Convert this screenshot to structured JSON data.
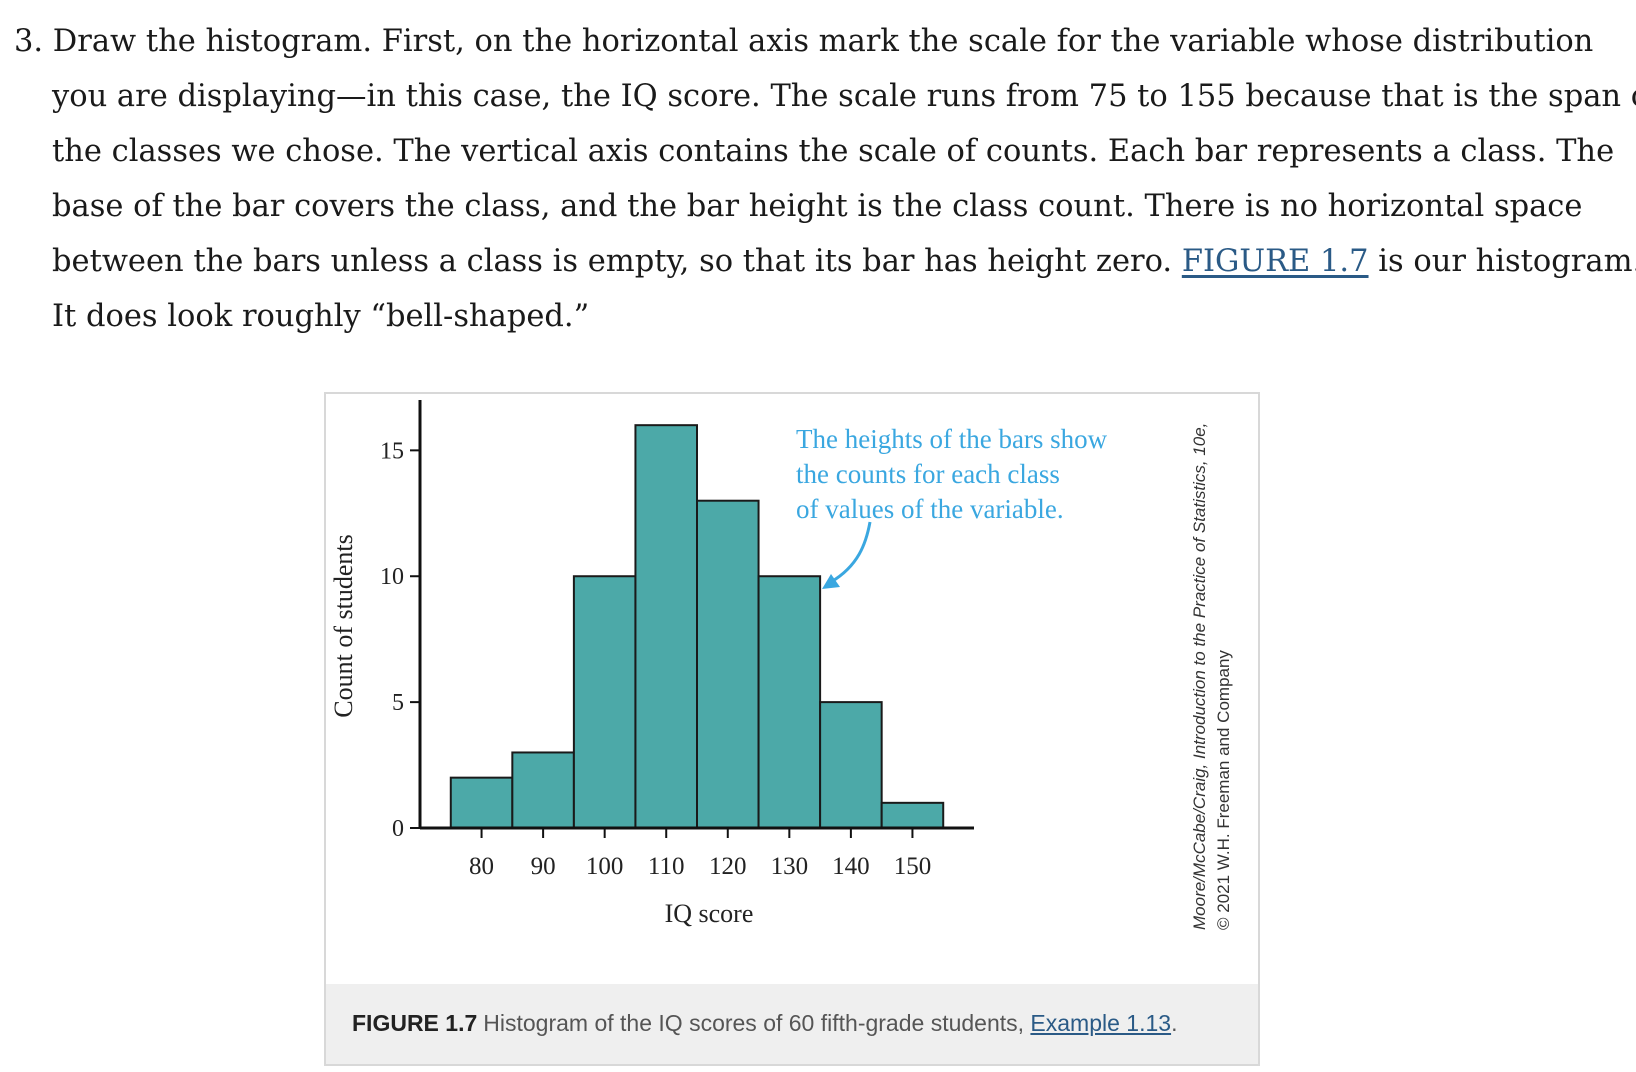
{
  "paragraph": {
    "line1": "3. Draw the histogram. First, on the horizontal axis mark the scale for the variable whose distribution",
    "line2": "you are displaying—in this case, the IQ score. The scale runs from 75 to 155 because that is the span of",
    "line3": "the classes we chose. The vertical axis contains the scale of counts. Each bar represents a class. The",
    "line4": "base of the bar covers the class, and the bar height is the class count. There is no horizontal space",
    "line5_before": "between the bars unless a class is empty, so that its bar has height zero. ",
    "line5_link": "FIGURE 1.7",
    "line5_after": " is our histogram.",
    "line6": "It does look roughly “bell-shaped.”"
  },
  "chart_data": {
    "type": "bar",
    "xlabel": "IQ score",
    "ylabel": "Count of students",
    "bin_edges": [
      75,
      85,
      95,
      105,
      115,
      125,
      135,
      145,
      155
    ],
    "values": [
      2,
      3,
      10,
      16,
      13,
      10,
      5,
      1
    ],
    "xticks": [
      80,
      90,
      100,
      110,
      120,
      130,
      140,
      150
    ],
    "yticks": [
      0,
      5,
      10,
      15
    ],
    "xlim": [
      70,
      160
    ],
    "ylim": [
      0,
      17
    ],
    "bar_color": "#4ca9a8",
    "annotation": {
      "lines": [
        "The heights of the bars show",
        "the counts for each class",
        "of values of the variable."
      ],
      "color": "#3aa7e0"
    }
  },
  "caption": {
    "label": "FIGURE 1.7",
    "text": "Histogram of the IQ scores of 60 fifth-grade students, ",
    "link": "Example 1.13",
    "end": "."
  },
  "credit": {
    "line1": "Moore/McCabe/Craig, Introduction to the Practice of Statistics, 10e,",
    "line2": "© 2021 W.H. Freeman and Company"
  }
}
